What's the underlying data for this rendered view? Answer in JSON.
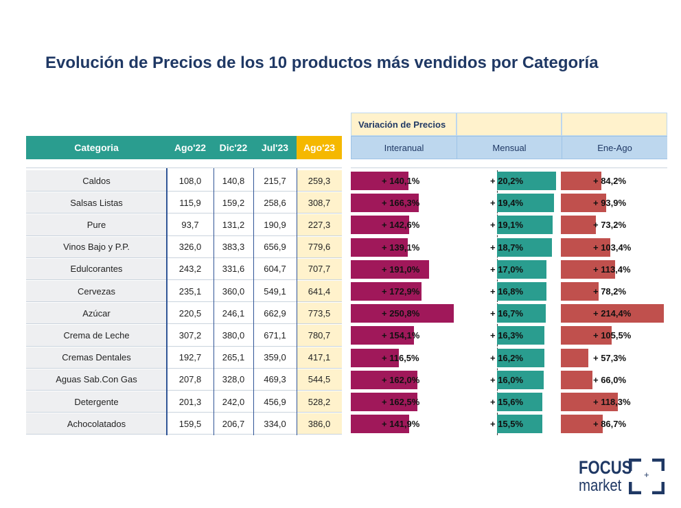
{
  "title": "Evolución de Precios de los 10 productos más vendidos por Categoría",
  "table": {
    "headers": [
      "Categoria",
      "Ago'22",
      "Dic'22",
      "Jul'23",
      "Ago'23"
    ],
    "rows": [
      {
        "categoria": "Caldos",
        "v": [
          "108,0",
          "140,8",
          "215,7",
          "259,3"
        ]
      },
      {
        "categoria": "Salsas Listas",
        "v": [
          "115,9",
          "159,2",
          "258,6",
          "308,7"
        ]
      },
      {
        "categoria": "Pure",
        "v": [
          "93,7",
          "131,2",
          "190,9",
          "227,3"
        ]
      },
      {
        "categoria": "Vinos Bajo y P.P.",
        "v": [
          "326,0",
          "383,3",
          "656,9",
          "779,6"
        ]
      },
      {
        "categoria": "Edulcorantes",
        "v": [
          "243,2",
          "331,6",
          "604,7",
          "707,7"
        ]
      },
      {
        "categoria": "Cervezas",
        "v": [
          "235,1",
          "360,0",
          "549,1",
          "641,4"
        ]
      },
      {
        "categoria": "Azúcar",
        "v": [
          "220,5",
          "246,1",
          "662,9",
          "773,5"
        ]
      },
      {
        "categoria": "Crema de Leche",
        "v": [
          "307,2",
          "380,0",
          "671,1",
          "780,7"
        ]
      },
      {
        "categoria": "Cremas Dentales",
        "v": [
          "192,7",
          "265,1",
          "359,0",
          "417,1"
        ]
      },
      {
        "categoria": "Aguas Sab.Con Gas",
        "v": [
          "207,8",
          "328,0",
          "469,3",
          "544,5"
        ]
      },
      {
        "categoria": "Detergente",
        "v": [
          "201,3",
          "242,0",
          "456,9",
          "528,2"
        ]
      },
      {
        "categoria": "Achocolatados",
        "v": [
          "159,5",
          "206,7",
          "334,0",
          "386,0"
        ]
      }
    ]
  },
  "variacion": {
    "header": "Variación de Precios",
    "columns": [
      "Interanual",
      "Mensual",
      "Ene-Ago"
    ],
    "colors": {
      "interanual": "#a0185a",
      "mensual": "#2a9d8f",
      "eneago": "#c0504d"
    },
    "interanual": {
      "values": [
        140.1,
        166.3,
        142.6,
        139.1,
        191.0,
        172.9,
        250.8,
        154.1,
        116.5,
        162.0,
        162.5,
        141.9
      ],
      "labels": [
        "+ 140,1%",
        "+ 166,3%",
        "+ 142,6%",
        "+ 139,1%",
        "+ 191,0%",
        "+ 172,9%",
        "+ 250,8%",
        "+ 154,1%",
        "+ 116,5%",
        "+ 162,0%",
        "+ 162,5%",
        "+ 141,9%"
      ]
    },
    "mensual": {
      "values": [
        20.2,
        19.4,
        19.1,
        18.7,
        17.0,
        16.8,
        16.7,
        16.3,
        16.2,
        16.0,
        15.6,
        15.5
      ],
      "labels": [
        "+ 20,2%",
        "+ 19,4%",
        "+ 19,1%",
        "+ 18,7%",
        "+ 17,0%",
        "+ 16,8%",
        "+ 16,7%",
        "+ 16,3%",
        "+ 16,2%",
        "+ 16,0%",
        "+ 15,6%",
        "+ 15,5%"
      ]
    },
    "eneago": {
      "values": [
        84.2,
        93.9,
        73.2,
        103.4,
        113.4,
        78.2,
        214.4,
        105.5,
        57.3,
        66.0,
        118.3,
        86.7
      ],
      "labels": [
        "+ 84,2%",
        "+ 93,9%",
        "+ 73,2%",
        "+ 103,4%",
        "+ 113,4%",
        "+ 78,2%",
        "+ 214,4%",
        "+ 105,5%",
        "+ 57,3%",
        "+ 66,0%",
        "+ 118,3%",
        "+ 86,7%"
      ]
    }
  },
  "logo": {
    "line1": "FOCUS",
    "line2": "market",
    "symbol": "+"
  }
}
